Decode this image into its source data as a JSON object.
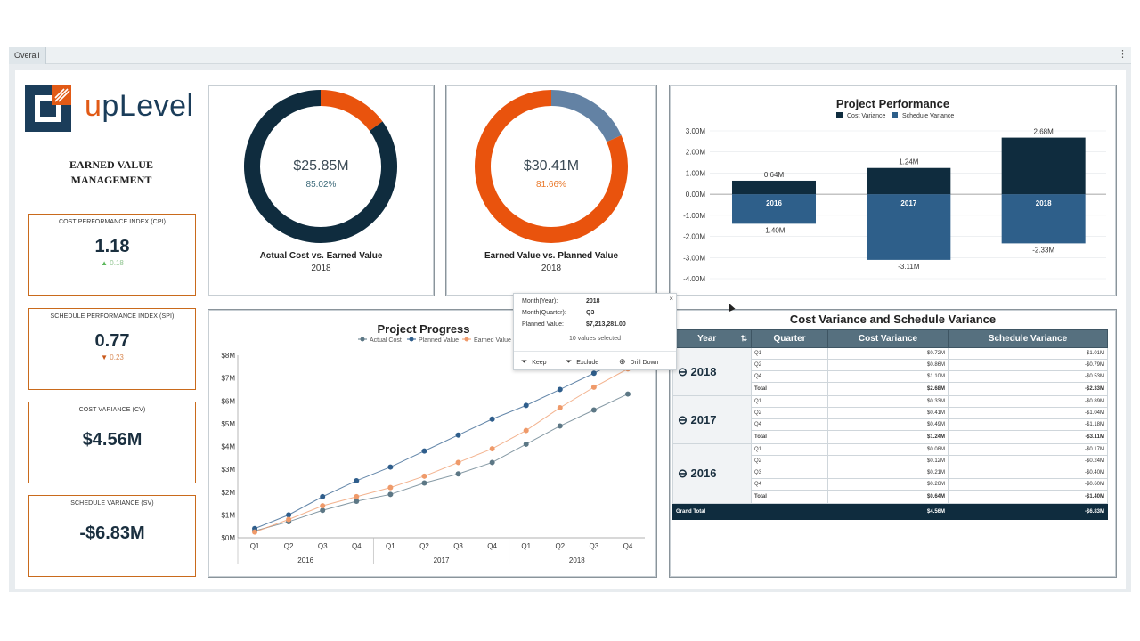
{
  "tabbar": {
    "tab_label": "Overall",
    "menu_glyph": "⋮"
  },
  "logo": {
    "brand_u": "u",
    "brand_rest": "pLevel",
    "colors": {
      "orange": "#e15a16",
      "navy": "#1b3d5a"
    }
  },
  "sidebar": {
    "title": "EARNED VALUE MANAGEMENT",
    "kpis": [
      {
        "title": "COST PERFORMANCE INDEX (CPI)",
        "value": "1.18",
        "delta": "0.18",
        "direction": "up",
        "delta_color": "#5cb85c"
      },
      {
        "title": "SCHEDULE PERFORMANCE INDEX (SPI)",
        "value": "0.77",
        "delta": "0.23",
        "direction": "down",
        "delta_color": "#c9581a"
      },
      {
        "title": "COST VARIANCE (CV)",
        "value": "$4.56M"
      },
      {
        "title": "SCHEDULE VARIANCE (SV)",
        "value": "-$6.83M"
      }
    ]
  },
  "donut1": {
    "center_value": "$25.85M",
    "center_pct": "85.02%",
    "caption": "Actual Cost vs. Earned Value",
    "year": "2018",
    "fraction": 0.8502,
    "main_color": "#0f2c3e",
    "rest_color": "#e9530d",
    "pct_color": "#3d6a7a"
  },
  "donut2": {
    "center_value": "$30.41M",
    "center_pct": "81.66%",
    "caption": "Earned Value vs. Planned Value",
    "year": "2018",
    "fraction": 0.8166,
    "main_color": "#e9530d",
    "rest_color": "#6382a4",
    "pct_color": "#e9782a"
  },
  "tooltip": {
    "close_glyph": "×",
    "rows": [
      {
        "key": "Month(Year):",
        "value": "2018"
      },
      {
        "key": "Month(Quarter):",
        "value": "Q3"
      },
      {
        "key": "Planned Value:",
        "value": "$7,213,281.00"
      }
    ],
    "selected_text": "10 values selected",
    "actions": {
      "keep": "Keep",
      "exclude": "Exclude",
      "drill": "Drill Down"
    }
  },
  "table": {
    "title": "Cost Variance and Schedule Variance",
    "headers": {
      "year": "Year",
      "quarter": "Quarter",
      "cv": "Cost Variance",
      "sv": "Schedule Variance"
    },
    "groups": [
      {
        "year": "2018",
        "rows": [
          {
            "q": "Q1",
            "cv": "$0.72M",
            "sv": "-$1.01M"
          },
          {
            "q": "Q2",
            "cv": "$0.86M",
            "sv": "-$0.79M"
          },
          {
            "q": "Q4",
            "cv": "$1.10M",
            "sv": "-$0.53M"
          }
        ],
        "total": {
          "label": "Total",
          "cv": "$2.68M",
          "sv": "-$2.33M"
        }
      },
      {
        "year": "2017",
        "rows": [
          {
            "q": "Q1",
            "cv": "$0.33M",
            "sv": "-$0.89M"
          },
          {
            "q": "Q2",
            "cv": "$0.41M",
            "sv": "-$1.04M"
          },
          {
            "q": "Q4",
            "cv": "$0.49M",
            "sv": "-$1.18M"
          }
        ],
        "total": {
          "label": "Total",
          "cv": "$1.24M",
          "sv": "-$3.11M"
        }
      },
      {
        "year": "2016",
        "rows": [
          {
            "q": "Q1",
            "cv": "$0.08M",
            "sv": "-$0.17M"
          },
          {
            "q": "Q2",
            "cv": "$0.12M",
            "sv": "-$0.24M"
          },
          {
            "q": "Q3",
            "cv": "$0.21M",
            "sv": "-$0.40M"
          },
          {
            "q": "Q4",
            "cv": "$0.26M",
            "sv": "-$0.60M"
          }
        ],
        "total": {
          "label": "Total",
          "cv": "$0.64M",
          "sv": "-$1.40M"
        }
      }
    ],
    "grand": {
      "label": "Grand Total",
      "cv": "$4.56M",
      "sv": "-$6.83M"
    }
  },
  "chart_data": [
    {
      "type": "bar",
      "title": "Project Performance",
      "legend_position": "top",
      "categories": [
        "2016",
        "2017",
        "2018"
      ],
      "series": [
        {
          "name": "Cost Variance",
          "values": [
            0.64,
            1.24,
            2.68
          ],
          "labels": [
            "0.64M",
            "1.24M",
            "2.68M"
          ],
          "color": "#0f2c3e"
        },
        {
          "name": "Schedule Variance",
          "values": [
            -1.4,
            -3.11,
            -2.33
          ],
          "labels": [
            "-1.40M",
            "-3.11M",
            "-2.33M"
          ],
          "color": "#2e5f8a"
        }
      ],
      "yticks": [
        "3.00M",
        "2.00M",
        "1.00M",
        "0.00M",
        "-1.00M",
        "-2.00M",
        "-3.00M",
        "-4.00M"
      ],
      "ylim": [
        -4,
        3
      ],
      "grid": true
    },
    {
      "type": "line",
      "title": "Project Progress",
      "legend_position": "top",
      "x": [
        "Q1",
        "Q2",
        "Q3",
        "Q4",
        "Q1",
        "Q2",
        "Q3",
        "Q4",
        "Q1",
        "Q2",
        "Q3",
        "Q4"
      ],
      "x_groups": [
        "2016",
        "2017",
        "2018"
      ],
      "yticks": [
        "$0M",
        "$1M",
        "$2M",
        "$3M",
        "$4M",
        "$5M",
        "$6M",
        "$7M",
        "$8M"
      ],
      "ylim": [
        0,
        8
      ],
      "grid": false,
      "series": [
        {
          "name": "Actual Cost",
          "color": "#5c7785",
          "values": [
            0.3,
            0.7,
            1.2,
            1.6,
            1.9,
            2.4,
            2.8,
            3.3,
            4.1,
            4.9,
            5.6,
            6.3
          ]
        },
        {
          "name": "Planned Value",
          "color": "#2f5e8c",
          "values": [
            0.4,
            1.0,
            1.8,
            2.5,
            3.1,
            3.8,
            4.5,
            5.2,
            5.8,
            6.5,
            7.21,
            8.0
          ]
        },
        {
          "name": "Earned Value",
          "color": "#ef9a6a",
          "values": [
            0.25,
            0.8,
            1.4,
            1.8,
            2.2,
            2.7,
            3.3,
            3.9,
            4.7,
            5.7,
            6.6,
            7.4
          ]
        }
      ]
    }
  ]
}
